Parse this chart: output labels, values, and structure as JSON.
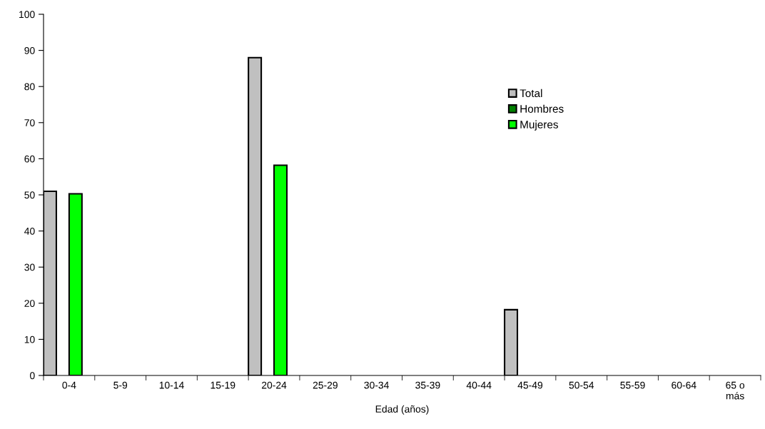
{
  "chart_data": {
    "type": "bar",
    "xlabel": "Edad (años)",
    "categories": [
      "0-4",
      "5-9",
      "10-14",
      "15-19",
      "20-24",
      "25-29",
      "30-34",
      "35-39",
      "40-44",
      "45-49",
      "50-54",
      "55-59",
      "60-64",
      "65 o\nmás"
    ],
    "series": [
      {
        "name": "Total",
        "color": "#c0c0c0",
        "values": [
          51,
          null,
          null,
          null,
          88,
          null,
          null,
          null,
          null,
          18.2,
          null,
          null,
          null,
          null
        ]
      },
      {
        "name": "Hombres",
        "color": "#008000",
        "values": [
          null,
          null,
          null,
          null,
          null,
          null,
          null,
          null,
          null,
          null,
          null,
          null,
          null,
          null
        ]
      },
      {
        "name": "Mujeres",
        "color": "#00ff00",
        "values": [
          50.3,
          null,
          null,
          null,
          58.2,
          null,
          null,
          null,
          null,
          null,
          null,
          null,
          null,
          null
        ]
      }
    ],
    "ylim": [
      0,
      100
    ],
    "yticks": [
      0,
      10,
      20,
      30,
      40,
      50,
      60,
      70,
      80,
      90,
      100
    ],
    "grid": false,
    "legend": "top right"
  }
}
